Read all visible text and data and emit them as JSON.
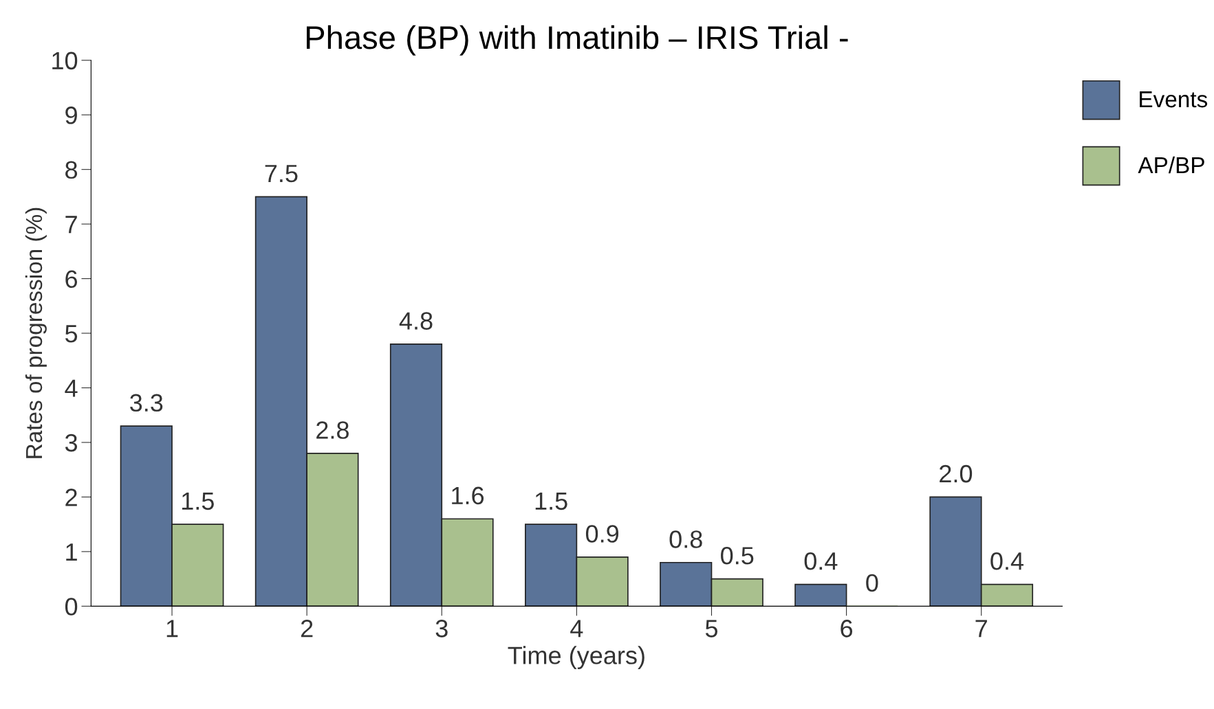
{
  "chart_data": {
    "type": "bar",
    "title": "Phase (BP) with Imatinib – IRIS Trial -",
    "xlabel": "Time (years)",
    "ylabel": "Rates of progression (%)",
    "categories": [
      "1",
      "2",
      "3",
      "4",
      "5",
      "6",
      "7"
    ],
    "series": [
      {
        "name": "Events",
        "color": "#5a7398",
        "values": [
          3.3,
          7.5,
          4.8,
          1.5,
          0.8,
          0.4,
          2.0
        ],
        "value_labels": [
          "3.3",
          "7.5",
          "4.8",
          "1.5",
          "0.8",
          "0.4",
          "2.0"
        ]
      },
      {
        "name": "AP/BP",
        "color": "#a9c08e",
        "values": [
          1.5,
          2.8,
          1.6,
          0.9,
          0.5,
          0,
          0.4
        ],
        "value_labels": [
          "1.5",
          "2.8",
          "1.6",
          "0.9",
          "0.5",
          "0",
          "0.4"
        ]
      }
    ],
    "ylim": [
      0,
      10
    ],
    "yticks": [
      0,
      1,
      2,
      3,
      4,
      5,
      6,
      7,
      8,
      9,
      10
    ],
    "grid": false,
    "legend": "top right"
  }
}
